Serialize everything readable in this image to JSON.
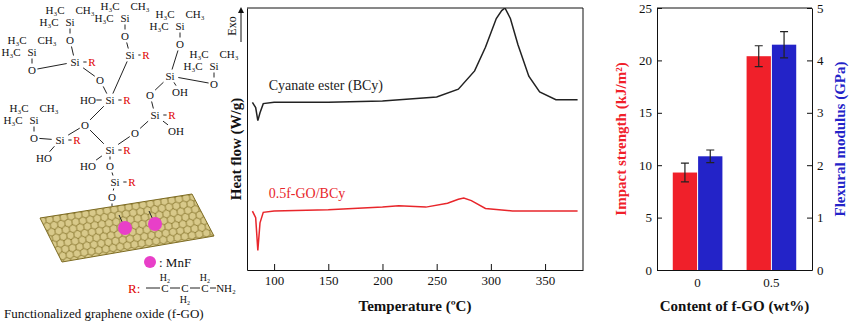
{
  "diagram": {
    "caption": "Functionalized graphene oxide (f-GO)",
    "tms_groups": [
      [
        "H₃C",
        "CH₃",
        "H₃C",
        "Si",
        "O"
      ],
      [
        "H₃C",
        "CH₃",
        "H₃C",
        "Si",
        "O"
      ],
      [
        "H₃C",
        "CH₃",
        "H₃C",
        "Si",
        "O"
      ],
      [
        "H₃C",
        "CH₃",
        "H₃C",
        "Si",
        "O"
      ],
      [
        "H₃C",
        "CH₃",
        "H₃C",
        "Si",
        "O"
      ],
      [
        "H₃C",
        "CH₃",
        "H₃C",
        "Si",
        "O"
      ]
    ],
    "core_atoms": [
      "Si",
      "R",
      "Si",
      "R",
      "Si",
      "OH",
      "O",
      "Si",
      "R",
      "HO",
      "O",
      "Si",
      "R",
      "OH",
      "Si",
      "R",
      "HO",
      "O",
      "Si",
      "O",
      "HO",
      "R",
      "O",
      "Si",
      "R",
      "O"
    ],
    "dot_legend": ": MnF",
    "r_def": {
      "label": "R:",
      "atoms": [
        "C",
        "C",
        "C",
        "NH₂"
      ],
      "hydrogens": [
        "H₂",
        "H₂",
        "H₂"
      ]
    }
  },
  "chart_data": [
    {
      "type": "line",
      "xlabel": "Temperature (ºC)",
      "ylabel": "Heat flow (W/g)",
      "annotations": [
        "Exo"
      ],
      "xlim": [
        75,
        385
      ],
      "xticks": [
        100,
        150,
        200,
        250,
        300,
        350
      ],
      "ylim": [
        0,
        100
      ],
      "tick_labels": "x",
      "series": [
        {
          "name": "Cyanate ester (BCy)",
          "color": "#222222",
          "x": [
            80,
            83,
            85,
            87,
            90,
            100,
            150,
            200,
            250,
            270,
            285,
            295,
            305,
            310,
            313,
            318,
            325,
            335,
            345,
            360,
            380
          ],
          "values": [
            64,
            62,
            57,
            60,
            63.5,
            64,
            64,
            64.5,
            66,
            69,
            76,
            85,
            96,
            99,
            100,
            96,
            86,
            74,
            68,
            65,
            65
          ]
        },
        {
          "name": "0.5f-GO/BCy",
          "color": "#e8262b",
          "x": [
            80,
            83,
            85,
            87,
            90,
            100,
            150,
            200,
            215,
            240,
            260,
            270,
            275,
            282,
            295,
            320,
            350,
            380
          ],
          "values": [
            22.5,
            20,
            7.5,
            18,
            22,
            22.5,
            23,
            24,
            24.5,
            24,
            25.5,
            27,
            27.5,
            26.5,
            23.5,
            22.5,
            22.5,
            22.5
          ]
        }
      ]
    },
    {
      "type": "bar",
      "categories": [
        "0",
        "0.5"
      ],
      "xlabel": "Content of f-GO (wt%)",
      "ylabel": "Impact strength (kJ/m²)",
      "y2label": "Flexural modulus (GPa)",
      "ylim": [
        0,
        25
      ],
      "yticks": [
        0,
        5,
        10,
        15,
        20,
        25
      ],
      "y2lim": [
        0,
        5
      ],
      "y2ticks": [
        0,
        1,
        2,
        3,
        4,
        5
      ],
      "series": [
        {
          "color": "#f0202a",
          "values": [
            9.3,
            20.4
          ],
          "errors": [
            0.9,
            1.0
          ]
        },
        {
          "color": "#2323c8",
          "axis": "y2",
          "values": [
            2.17,
            4.3
          ],
          "errors": [
            0.12,
            0.25
          ]
        }
      ]
    }
  ]
}
